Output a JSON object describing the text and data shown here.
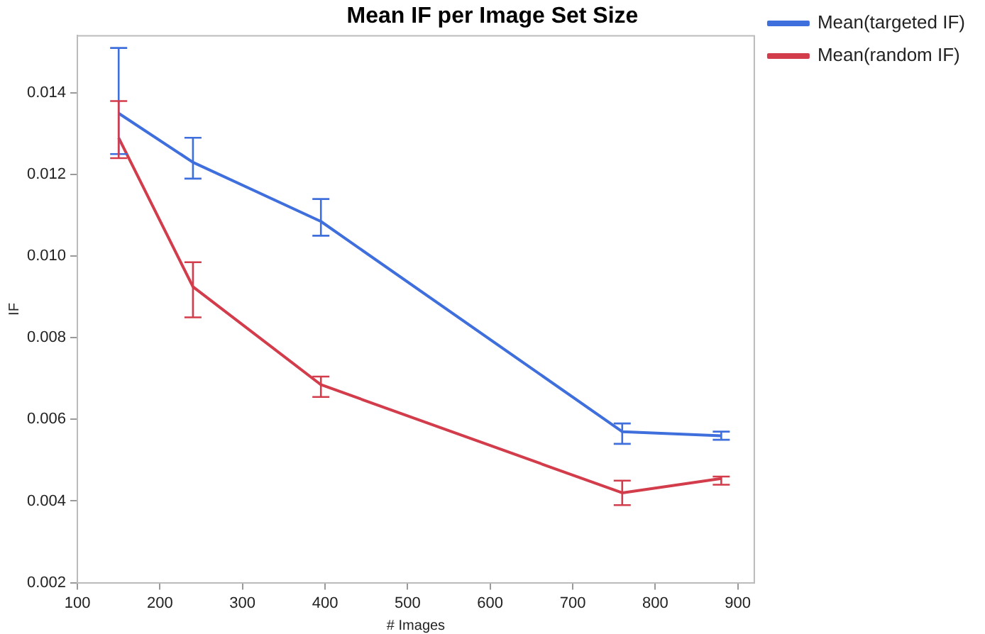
{
  "chart_data": {
    "type": "line",
    "title": "Mean IF per Image Set Size",
    "xlabel": "# Images",
    "ylabel": "IF",
    "x": [
      150,
      240,
      395,
      760,
      880
    ],
    "series": [
      {
        "name": "Mean(targeted IF)",
        "color": "#3f6fdc",
        "values": [
          0.0135,
          0.0123,
          0.01085,
          0.0057,
          0.0056
        ],
        "errors": [
          [
            0.0125,
            0.0151
          ],
          [
            0.0119,
            0.0129
          ],
          [
            0.0105,
            0.0114
          ],
          [
            0.0054,
            0.0059
          ],
          [
            0.0055,
            0.0057
          ]
        ]
      },
      {
        "name": "Mean(random IF)",
        "color": "#d23c4b",
        "values": [
          0.0129,
          0.00925,
          0.00685,
          0.0042,
          0.00455
        ],
        "errors": [
          [
            0.0124,
            0.0138
          ],
          [
            0.0085,
            0.00985
          ],
          [
            0.00655,
            0.00705
          ],
          [
            0.0039,
            0.0045
          ],
          [
            0.0044,
            0.0046
          ]
        ]
      }
    ],
    "xlim": [
      100,
      920
    ],
    "xticks": [
      100,
      200,
      300,
      400,
      500,
      600,
      700,
      800,
      900
    ],
    "ylim": [
      0.002,
      0.0154
    ],
    "yticks": [
      0.002,
      0.004,
      0.006,
      0.008,
      {
        "value": 0.01,
        "label": "0.010"
      },
      0.012,
      0.014
    ],
    "grid": false,
    "legend": "top right",
    "marker": "none",
    "line_style": "solid"
  }
}
